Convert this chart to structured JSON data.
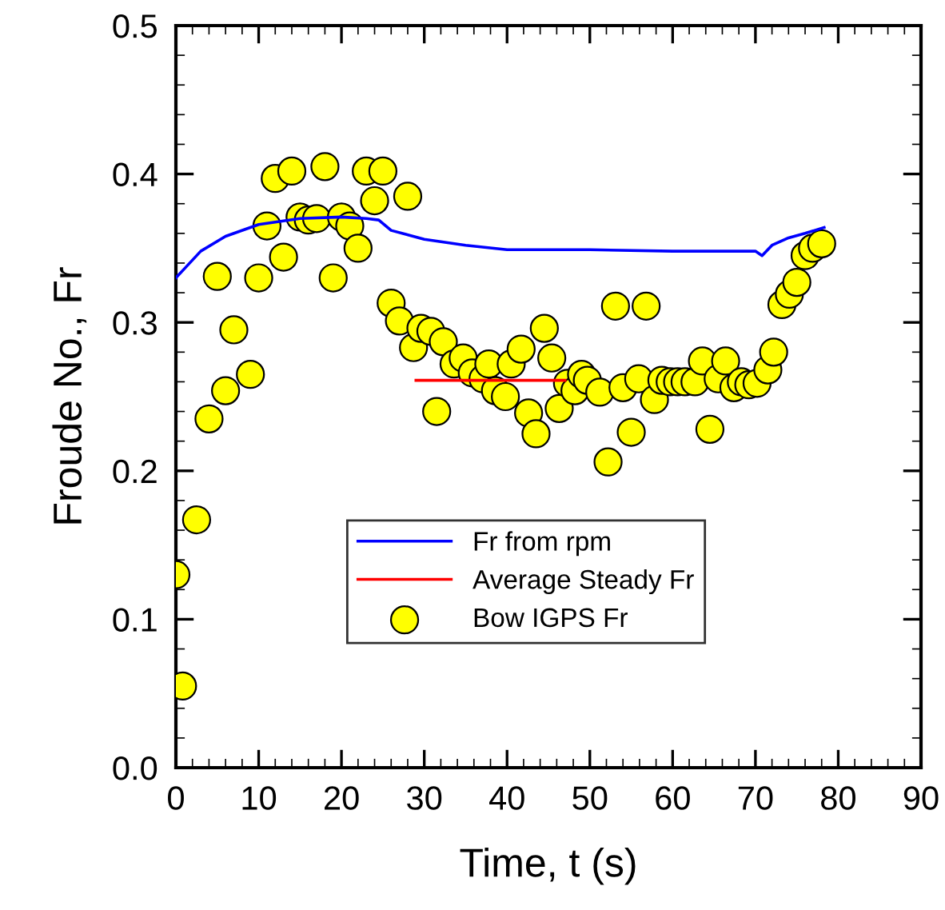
{
  "chart_data": {
    "type": "scatter",
    "xlabel": "Time, t (s)",
    "ylabel": "Froude No., Fr",
    "xlim": [
      0,
      90
    ],
    "ylim": [
      0.0,
      0.5
    ],
    "xticks": [
      0,
      10,
      20,
      30,
      40,
      50,
      60,
      70,
      80,
      90
    ],
    "yticks": [
      {
        "value": 0.0,
        "label": "0.0"
      },
      0.1,
      0.2,
      0.3,
      0.4,
      0.5
    ],
    "grid": false,
    "legend": "bottom",
    "series": [
      {
        "name": "Fr from rpm",
        "type": "line",
        "color": "#0000ff",
        "marker": "none",
        "line_style": "solid",
        "x": [
          0,
          1,
          3,
          6,
          10,
          15,
          20,
          23,
          24.5,
          26,
          30,
          35,
          40,
          50,
          60,
          70,
          70.8,
          72,
          74,
          76,
          78.3
        ],
        "values": [
          0.33,
          0.336,
          0.348,
          0.358,
          0.366,
          0.37,
          0.371,
          0.37,
          0.369,
          0.362,
          0.356,
          0.352,
          0.349,
          0.349,
          0.348,
          0.348,
          0.345,
          0.352,
          0.357,
          0.36,
          0.364
        ]
      },
      {
        "name": "Average Steady Fr",
        "type": "line",
        "color": "#ff0000",
        "marker": "none",
        "line_style": "solid",
        "x": [
          29,
          47
        ],
        "values": [
          0.261,
          0.261
        ]
      },
      {
        "name": "Bow IGPS Fr",
        "color": "#ffff00",
        "marker": "circle",
        "x": [
          0,
          0.8,
          2.5,
          4,
          5,
          6,
          7,
          9,
          10,
          11,
          12,
          13,
          14,
          15,
          16,
          17,
          18,
          19,
          20,
          21,
          22,
          23,
          24,
          25,
          26,
          27,
          28,
          28.7,
          29.6,
          30.8,
          31.5,
          32.3,
          33.6,
          34.7,
          35.8,
          37.1,
          37.8,
          38.6,
          39.8,
          40.5,
          41.7,
          42.6,
          43.5,
          44.5,
          45.4,
          46.3,
          47.3,
          48.2,
          49,
          49.7,
          51.2,
          52.2,
          53.1,
          54,
          55,
          55.9,
          56.8,
          57.8,
          58.7,
          59.7,
          60.6,
          61.5,
          62.7,
          63.6,
          64.5,
          65.5,
          66.4,
          67.4,
          68.3,
          69.2,
          70.2,
          71.5,
          72.2,
          73.2,
          74.1,
          75,
          76,
          76.9,
          78
        ],
        "values": [
          0.13,
          0.055,
          0.167,
          0.235,
          0.331,
          0.254,
          0.295,
          0.265,
          0.33,
          0.365,
          0.397,
          0.344,
          0.402,
          0.371,
          0.369,
          0.37,
          0.405,
          0.33,
          0.371,
          0.365,
          0.35,
          0.402,
          0.382,
          0.402,
          0.313,
          0.301,
          0.385,
          0.283,
          0.296,
          0.294,
          0.24,
          0.287,
          0.272,
          0.276,
          0.266,
          0.262,
          0.272,
          0.254,
          0.25,
          0.272,
          0.282,
          0.239,
          0.225,
          0.296,
          0.276,
          0.242,
          0.259,
          0.254,
          0.265,
          0.261,
          0.253,
          0.206,
          0.311,
          0.256,
          0.226,
          0.262,
          0.311,
          0.248,
          0.261,
          0.26,
          0.26,
          0.26,
          0.26,
          0.274,
          0.228,
          0.262,
          0.274,
          0.256,
          0.26,
          0.258,
          0.259,
          0.268,
          0.28,
          0.312,
          0.319,
          0.327,
          0.345,
          0.35,
          0.353
        ]
      }
    ]
  }
}
